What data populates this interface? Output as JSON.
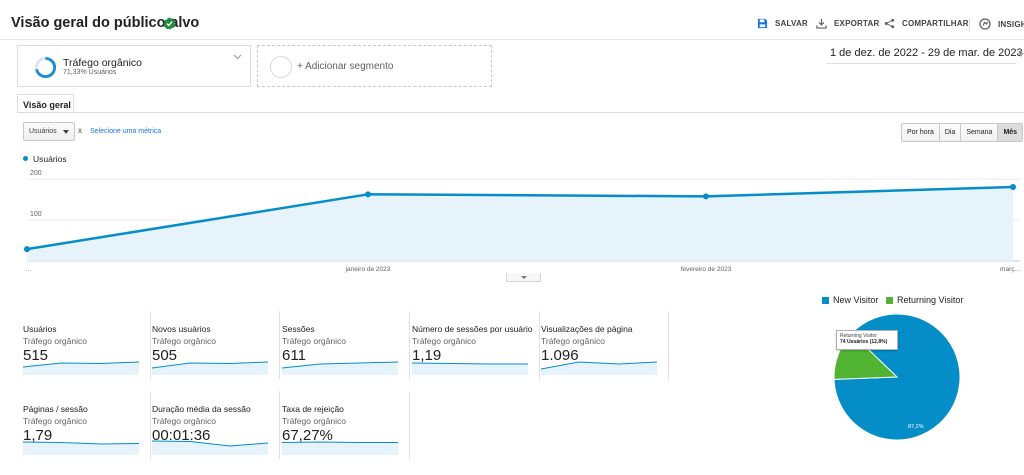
{
  "header": {
    "title": "Visão geral do público-alvo",
    "actions": [
      {
        "label": "SALVAR",
        "icon": "save-icon"
      },
      {
        "label": "EXPORTAR",
        "icon": "export-icon"
      },
      {
        "label": "COMPARTILHAR",
        "icon": "share-icon"
      },
      {
        "label": "INSIGHTS",
        "icon": "insights-icon"
      }
    ]
  },
  "segment": {
    "name": "Tráfego orgânico",
    "subtitle": "71,33% Usuários",
    "add_label": "+ Adicionar segmento"
  },
  "date_range": "1 de dez. de 2022 - 29 de mar. de 2023",
  "tabs": [
    {
      "label": "Visão geral"
    }
  ],
  "metric_selector": {
    "value": "Usuários",
    "clear": "x",
    "link": "Selecione uma métrica"
  },
  "granularity": {
    "options": [
      "Por hora",
      "Dia",
      "Semana",
      "Mês"
    ],
    "selected": "Mês"
  },
  "colors": {
    "primary": "#058dc7",
    "secondary": "#50b432",
    "area_fill": "#e6f3fa"
  },
  "chart_data": {
    "type": "area",
    "series": [
      {
        "name": "Usuários",
        "values": [
          29,
          163,
          158,
          181
        ]
      }
    ],
    "x": [
      "…",
      "janeiro de 2023",
      "fevereiro de 2023",
      "març…"
    ],
    "ylim": [
      0,
      220
    ],
    "yticks": [
      100,
      200
    ],
    "grid": true,
    "legend": "top-left"
  },
  "metrics": [
    {
      "title": "Usuários",
      "segment": "Tráfego orgânico",
      "value": "515"
    },
    {
      "title": "Novos usuários",
      "segment": "Tráfego orgânico",
      "value": "505"
    },
    {
      "title": "Sessões",
      "segment": "Tráfego orgânico",
      "value": "611"
    },
    {
      "title": "Número de sessões por usuário",
      "segment": "Tráfego orgânico",
      "value": "1,19"
    },
    {
      "title": "Visualizações de página",
      "segment": "Tráfego orgânico",
      "value": "1.096"
    },
    {
      "title": "Páginas / sessão",
      "segment": "Tráfego orgânico",
      "value": "1,79"
    },
    {
      "title": "Duração média da sessão",
      "segment": "Tráfego orgânico",
      "value": "00:01:36"
    },
    {
      "title": "Taxa de rejeição",
      "segment": "Tráfego orgânico",
      "value": "67,27%"
    }
  ],
  "pie": {
    "legend": [
      {
        "label": "New Visitor",
        "color": "#058dc7"
      },
      {
        "label": "Returning Visitor",
        "color": "#50b432"
      }
    ],
    "slices": [
      {
        "label": "New Visitor",
        "percent": 87.2
      },
      {
        "label": "Returning Visitor",
        "percent": 12.8
      }
    ],
    "tooltip_title": "Returning Visitor",
    "tooltip_value": "74 Usuários (12,8%)",
    "slice_label": "87,2%"
  }
}
